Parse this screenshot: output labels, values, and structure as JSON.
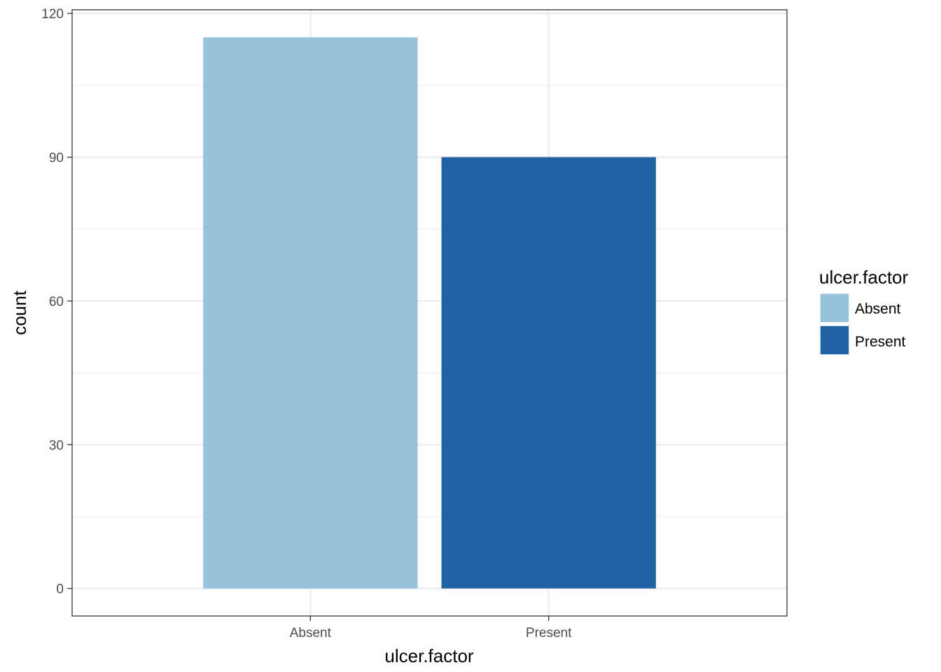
{
  "chart_data": {
    "type": "bar",
    "categories": [
      "Absent",
      "Present"
    ],
    "values": [
      115,
      90
    ],
    "colors": [
      "#97c2db",
      "#1f63a5"
    ],
    "xlabel": "ulcer.factor",
    "ylabel": "count",
    "ylim": [
      -5.75,
      120.75
    ],
    "y_ticks": [
      0,
      30,
      60,
      90,
      120
    ],
    "y_tick_labels": [
      "0",
      "30",
      "60",
      "90",
      "120"
    ],
    "grid": true,
    "legend": {
      "title": "ulcer.factor",
      "position": "right",
      "entries": [
        {
          "label": "Absent",
          "color": "#97c2db"
        },
        {
          "label": "Present",
          "color": "#1f63a5"
        }
      ]
    }
  }
}
